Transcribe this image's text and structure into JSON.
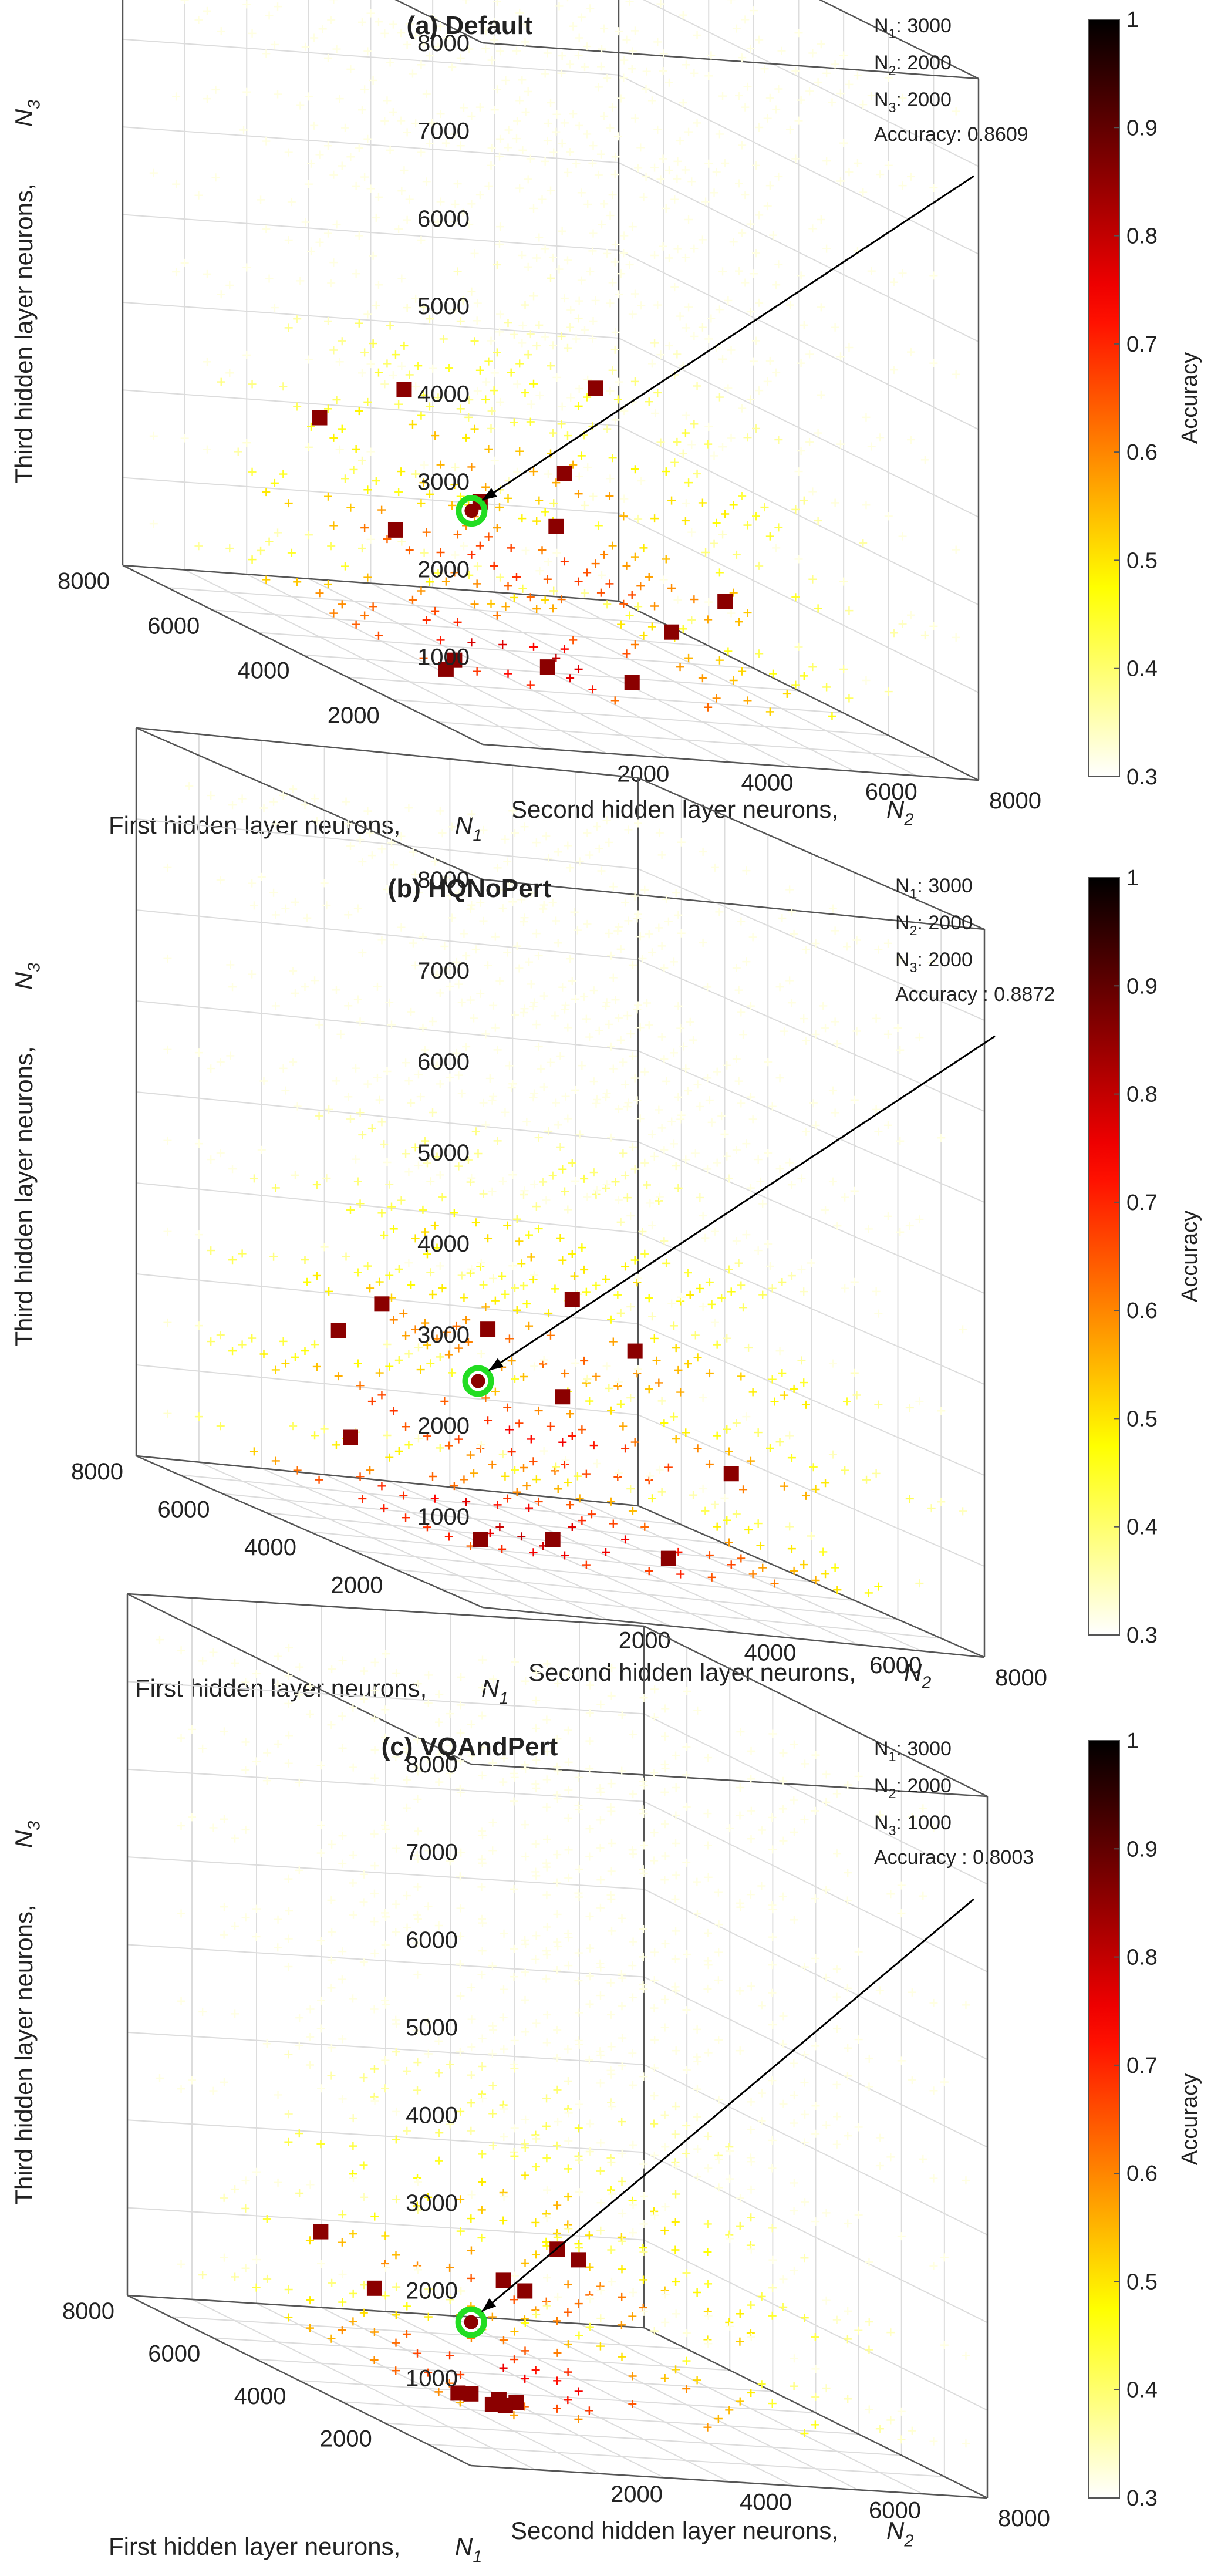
{
  "figure": {
    "colorscale_name": "hot",
    "colors": {
      "background": "#ffffff",
      "axis_line": "#333333",
      "grid_line": "#dcdcdc",
      "optimum_marker_edge": "#22dd22",
      "annotation_arrow": "#000000"
    }
  },
  "chart_data": [
    {
      "type": "scatter3d",
      "title": "(a) Default",
      "xlabel": "First hidden layer neurons,",
      "xlabel_symbol": "N",
      "xlabel_sub": "1",
      "ylabel": "Second hidden layer neurons,",
      "ylabel_symbol": "N",
      "ylabel_sub": "2",
      "zlabel": "Third hidden layer neurons,",
      "zlabel_symbol": "N",
      "zlabel_sub": "3",
      "x_ticks": [
        "2000",
        "4000",
        "6000",
        "8000"
      ],
      "y_ticks": [
        "2000",
        "4000",
        "6000",
        "8000"
      ],
      "z_ticks": [
        "1000",
        "2000",
        "3000",
        "4000",
        "5000",
        "6000",
        "7000",
        "8000"
      ],
      "xlim": [
        0,
        8000
      ],
      "ylim": [
        0,
        8000
      ],
      "zlim": [
        0,
        8000
      ],
      "colorbar": {
        "label": "Accuracy",
        "ticks": [
          "0.3",
          "0.4",
          "0.5",
          "0.6",
          "0.7",
          "0.8",
          "0.9",
          "1"
        ],
        "range": [
          0.3,
          1.0
        ]
      },
      "annotation": {
        "n1_label": "N",
        "n1_sub": "1",
        "n1_value": ": 3000",
        "n2_label": "N",
        "n2_sub": "2",
        "n2_value": ": 2000",
        "n3_label": "N",
        "n3_sub": "3",
        "n3_value": ": 2000",
        "accuracy_text": "Accuracy: 0.8609"
      },
      "optimum": {
        "n1": 3000,
        "n2": 2000,
        "n3": 2000,
        "accuracy": 0.8609
      },
      "top_points": [
        {
          "n1": 4000,
          "n2": 1500,
          "n3": 1500,
          "accuracy": 0.85
        },
        {
          "n1": 3500,
          "n2": 2500,
          "n3": 2000,
          "accuracy": 0.85
        },
        {
          "n1": 2500,
          "n2": 3000,
          "n3": 2000,
          "accuracy": 0.85
        },
        {
          "n1": 4500,
          "n2": 2000,
          "n3": 3000,
          "accuracy": 0.85
        },
        {
          "n1": 5000,
          "n2": 1000,
          "n3": 2500,
          "accuracy": 0.85
        },
        {
          "n1": 3000,
          "n2": 3500,
          "n3": 2500,
          "accuracy": 0.85
        },
        {
          "n1": 2000,
          "n2": 2500,
          "n3": 500,
          "accuracy": 0.85
        },
        {
          "n1": 1500,
          "n2": 3500,
          "n3": 500,
          "accuracy": 0.85
        },
        {
          "n1": 2000,
          "n2": 4500,
          "n3": 1000,
          "accuracy": 0.85
        },
        {
          "n1": 1500,
          "n2": 5000,
          "n3": 1500,
          "accuracy": 0.85
        },
        {
          "n1": 2000,
          "n2": 1000,
          "n3": 500,
          "accuracy": 0.85
        },
        {
          "n1": 1500,
          "n2": 500,
          "n3": 500,
          "accuracy": 0.85
        },
        {
          "n1": 3000,
          "n2": 4000,
          "n3": 3500,
          "accuracy": 0.85
        }
      ]
    },
    {
      "type": "scatter3d",
      "title": "(b) HQNoPert",
      "xlabel": "First hidden layer neurons,",
      "xlabel_symbol": "N",
      "xlabel_sub": "1",
      "ylabel": "Second hidden layer neurons,",
      "ylabel_symbol": "N",
      "ylabel_sub": "2",
      "zlabel": "Third hidden layer neurons,",
      "zlabel_symbol": "N",
      "zlabel_sub": "3",
      "x_ticks": [
        "2000",
        "4000",
        "6000",
        "8000"
      ],
      "y_ticks": [
        "2000",
        "4000",
        "6000",
        "8000"
      ],
      "z_ticks": [
        "1000",
        "2000",
        "3000",
        "4000",
        "5000",
        "6000",
        "7000",
        "8000"
      ],
      "xlim": [
        0,
        8000
      ],
      "ylim": [
        0,
        8000
      ],
      "zlim": [
        0,
        8000
      ],
      "colorbar": {
        "label": "Accuracy",
        "ticks": [
          "0.3",
          "0.4",
          "0.5",
          "0.6",
          "0.7",
          "0.8",
          "0.9",
          "1"
        ],
        "range": [
          0.3,
          1.0
        ]
      },
      "annotation": {
        "n1_label": "N",
        "n1_sub": "1",
        "n1_value": ": 3000",
        "n2_label": "N",
        "n2_sub": "2",
        "n2_value": ": 2000",
        "n3_label": "N",
        "n3_sub": "3",
        "n3_value": ": 2000",
        "accuracy_text": "Accuracy : 0.8872"
      },
      "optimum": {
        "n1": 3000,
        "n2": 2000,
        "n3": 2000,
        "accuracy": 0.8872
      },
      "top_points": [
        {
          "n1": 4500,
          "n2": 1500,
          "n3": 2500,
          "accuracy": 0.87
        },
        {
          "n1": 3500,
          "n2": 2500,
          "n3": 2500,
          "accuracy": 0.87
        },
        {
          "n1": 3000,
          "n2": 3500,
          "n3": 3000,
          "accuracy": 0.87
        },
        {
          "n1": 2500,
          "n2": 3000,
          "n3": 2000,
          "accuracy": 0.87
        },
        {
          "n1": 5500,
          "n2": 1500,
          "n3": 2000,
          "accuracy": 0.87
        },
        {
          "n1": 4500,
          "n2": 1000,
          "n3": 1000,
          "accuracy": 0.87
        },
        {
          "n1": 3000,
          "n2": 4500,
          "n3": 2500,
          "accuracy": 0.87
        },
        {
          "n1": 2000,
          "n2": 2500,
          "n3": 500,
          "accuracy": 0.87
        },
        {
          "n1": 1500,
          "n2": 4000,
          "n3": 500,
          "accuracy": 0.87
        },
        {
          "n1": 1500,
          "n2": 5000,
          "n3": 1500,
          "accuracy": 0.87
        },
        {
          "n1": 1500,
          "n2": 1000,
          "n3": 500,
          "accuracy": 0.87
        }
      ]
    },
    {
      "type": "scatter3d",
      "title": "(c) VQAndPert",
      "xlabel": "First hidden layer neurons,",
      "xlabel_symbol": "N",
      "xlabel_sub": "1",
      "ylabel": "Second hidden layer neurons,",
      "ylabel_symbol": "N",
      "ylabel_sub": "2",
      "zlabel": "Third hidden layer neurons,",
      "zlabel_symbol": "N",
      "zlabel_sub": "3",
      "x_ticks": [
        "2000",
        "4000",
        "6000",
        "8000"
      ],
      "y_ticks": [
        "2000",
        "4000",
        "6000",
        "8000"
      ],
      "z_ticks": [
        "1000",
        "2000",
        "3000",
        "4000",
        "5000",
        "6000",
        "7000",
        "8000"
      ],
      "xlim": [
        0,
        8000
      ],
      "ylim": [
        0,
        8000
      ],
      "zlim": [
        0,
        8000
      ],
      "colorbar": {
        "label": "Accuracy",
        "ticks": [
          "0.3",
          "0.4",
          "0.5",
          "0.6",
          "0.7",
          "0.8",
          "0.9",
          "1"
        ],
        "range": [
          0.3,
          1.0
        ]
      },
      "annotation": {
        "n1_label": "N",
        "n1_sub": "1",
        "n1_value": ": 3000",
        "n2_label": "N",
        "n2_sub": "2",
        "n2_value": ": 2000",
        "n3_label": "N",
        "n3_sub": "3",
        "n3_value": ": 1000",
        "accuracy_text": "Accuracy : 0.8003"
      },
      "optimum": {
        "n1": 3000,
        "n2": 2000,
        "n3": 1000,
        "accuracy": 0.8003
      },
      "top_points": [
        {
          "n1": 3000,
          "n2": 2500,
          "n3": 1500,
          "accuracy": 0.79
        },
        {
          "n1": 2500,
          "n2": 2500,
          "n3": 1500,
          "accuracy": 0.79
        },
        {
          "n1": 2500,
          "n2": 3000,
          "n3": 2000,
          "accuracy": 0.79
        },
        {
          "n1": 4500,
          "n2": 1500,
          "n3": 1000,
          "accuracy": 0.79
        },
        {
          "n1": 5000,
          "n2": 1000,
          "n3": 1500,
          "accuracy": 0.79
        },
        {
          "n1": 1500,
          "n2": 1000,
          "n3": 500,
          "accuracy": 0.79
        },
        {
          "n1": 1500,
          "n2": 800,
          "n3": 500,
          "accuracy": 0.79
        },
        {
          "n1": 1000,
          "n2": 1000,
          "n3": 500,
          "accuracy": 0.79
        },
        {
          "n1": 1200,
          "n2": 1500,
          "n3": 500,
          "accuracy": 0.79
        },
        {
          "n1": 1000,
          "n2": 1200,
          "n3": 500,
          "accuracy": 0.79
        },
        {
          "n1": 1300,
          "n2": 1300,
          "n3": 500,
          "accuracy": 0.79
        },
        {
          "n1": 2000,
          "n2": 3000,
          "n3": 2000,
          "accuracy": 0.79
        }
      ]
    }
  ]
}
